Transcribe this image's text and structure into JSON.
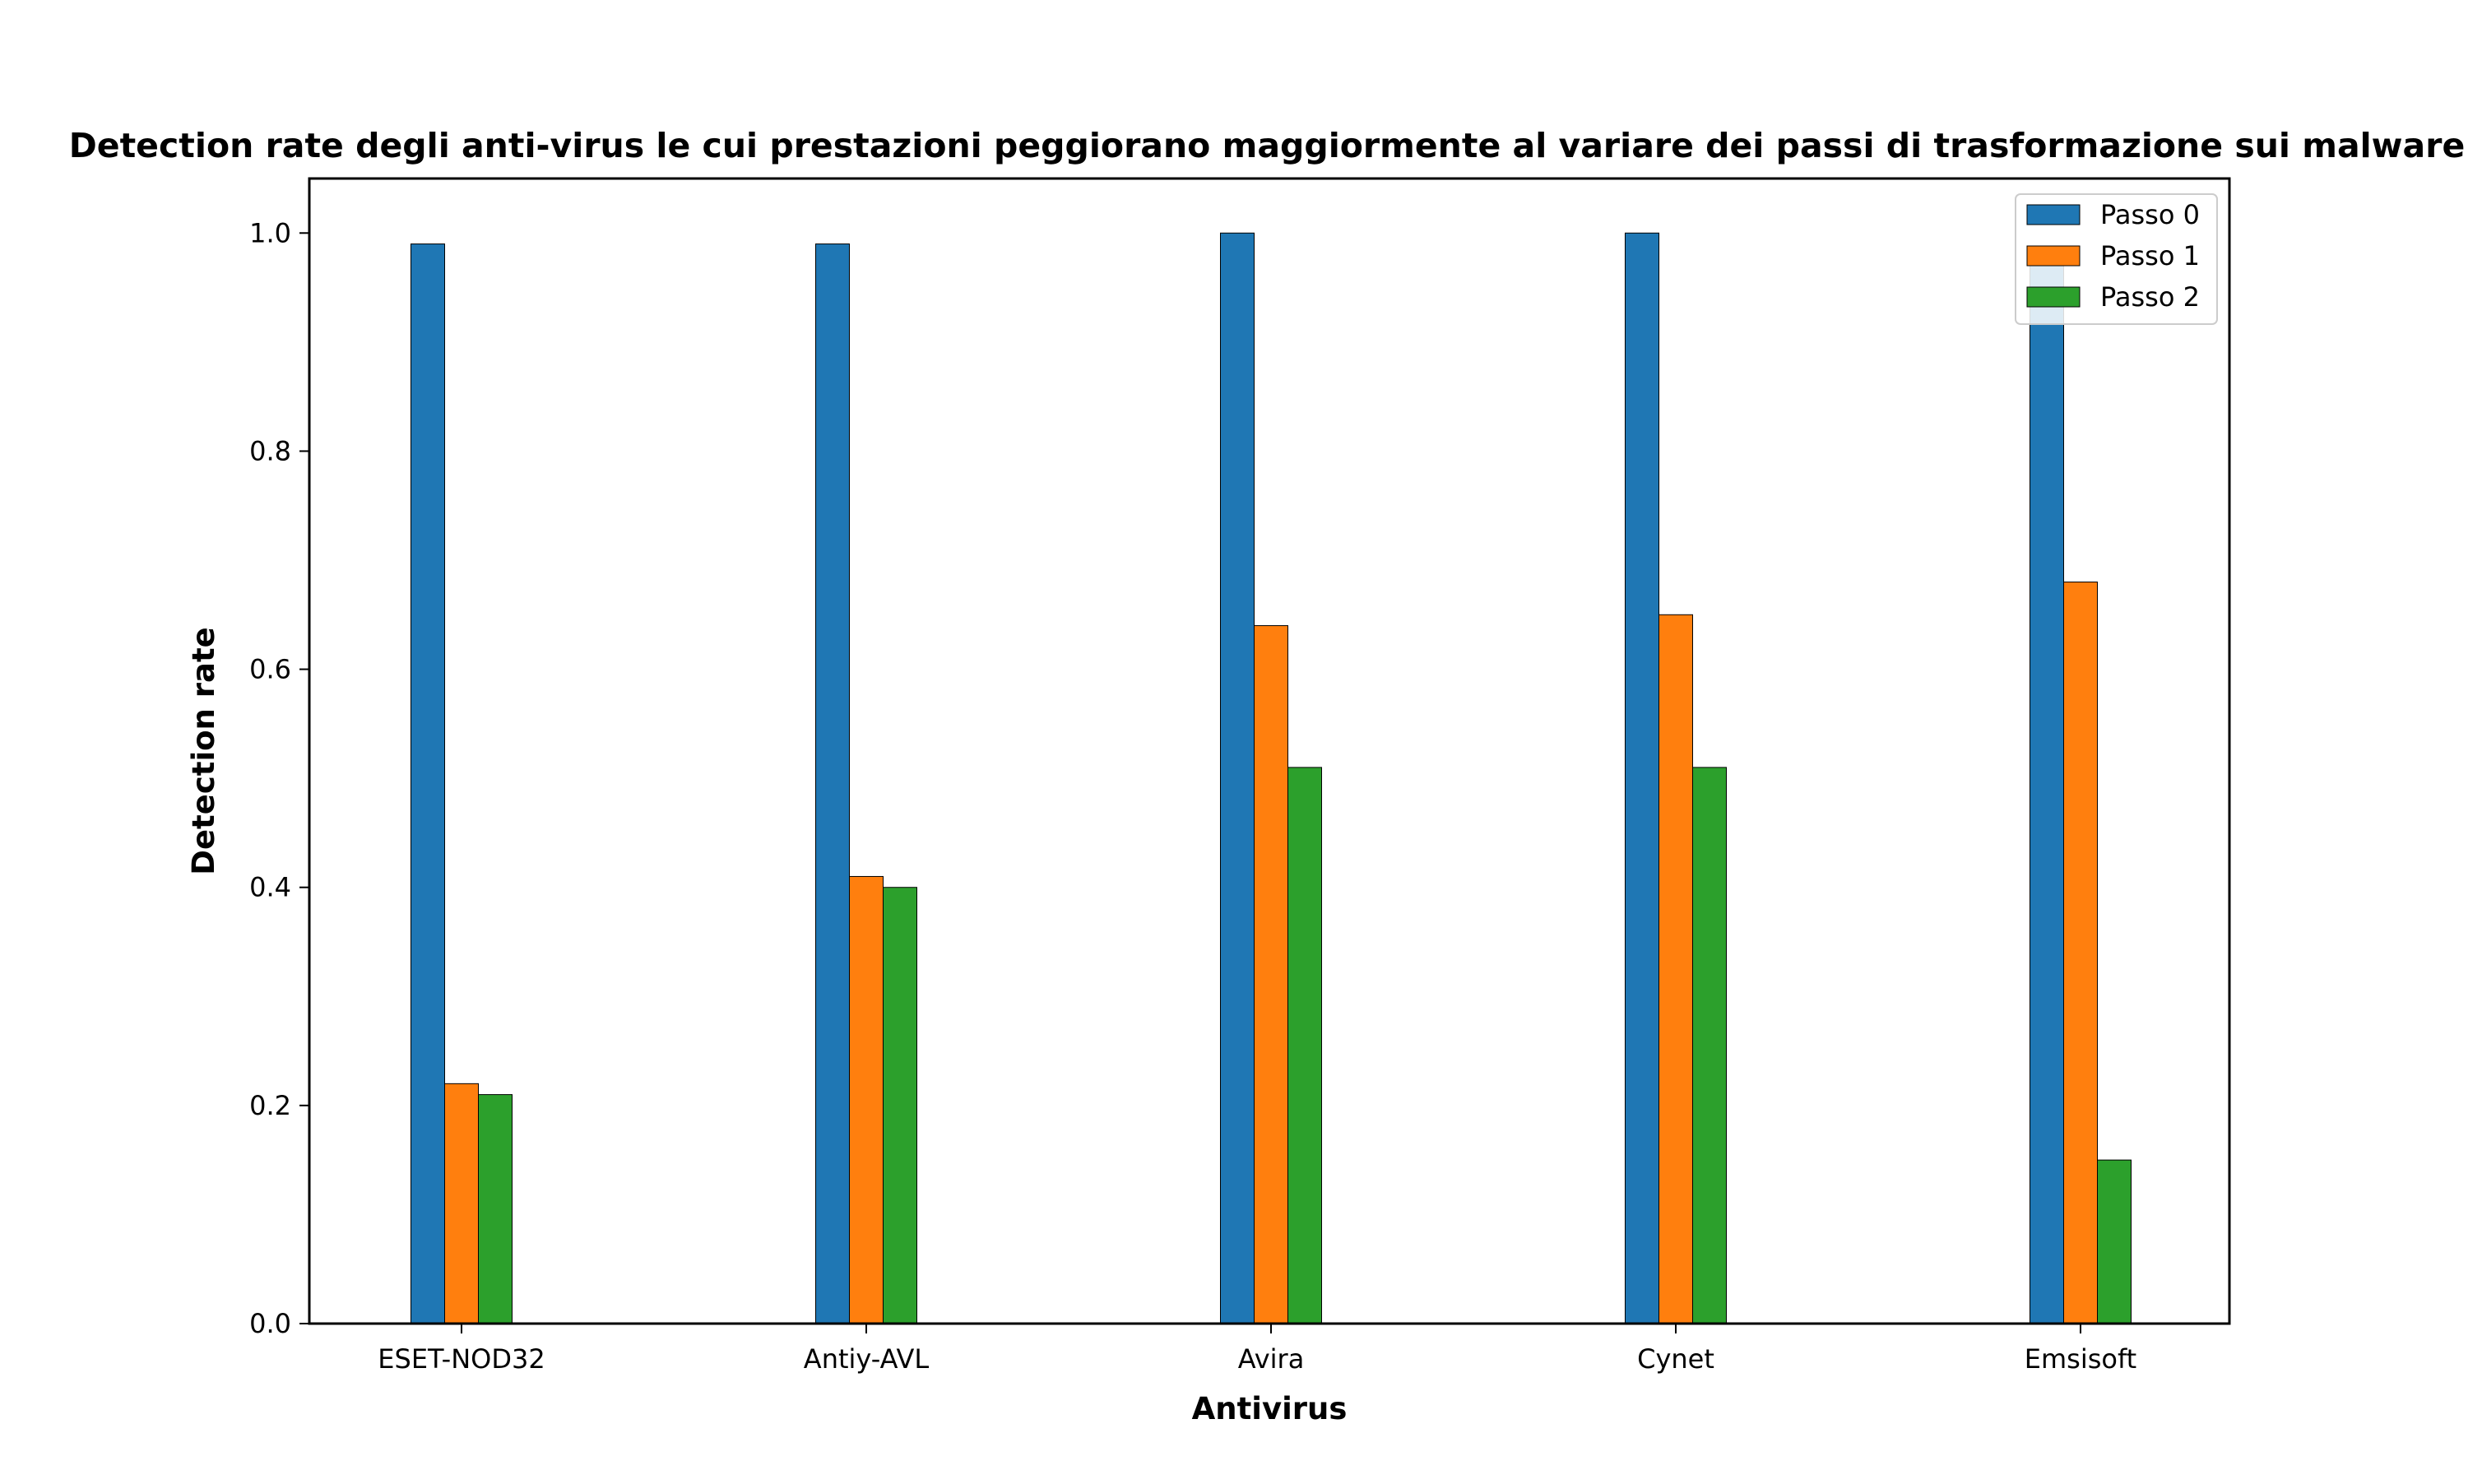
{
  "chart_data": {
    "type": "bar",
    "title": "Detection rate degli anti-virus le cui prestazioni peggiorano maggiormente al variare dei passi di trasformazione sui malware",
    "xlabel": "Antivirus",
    "ylabel": "Detection rate",
    "categories": [
      "ESET-NOD32",
      "Antiy-AVL",
      "Avira",
      "Cynet",
      "Emsisoft"
    ],
    "series": [
      {
        "name": "Passo 0",
        "color": "#1f77b4",
        "values": [
          0.99,
          0.99,
          1.0,
          1.0,
          0.98
        ]
      },
      {
        "name": "Passo 1",
        "color": "#ff7f0e",
        "values": [
          0.22,
          0.41,
          0.64,
          0.65,
          0.68
        ]
      },
      {
        "name": "Passo 2",
        "color": "#2ca02c",
        "values": [
          0.21,
          0.4,
          0.51,
          0.51,
          0.15
        ]
      }
    ],
    "ylim": [
      0,
      1.05
    ],
    "yticks": [
      "0.0",
      "0.2",
      "0.4",
      "0.6",
      "0.8",
      "1.0"
    ],
    "grid": false,
    "legend_position": "top-right"
  }
}
